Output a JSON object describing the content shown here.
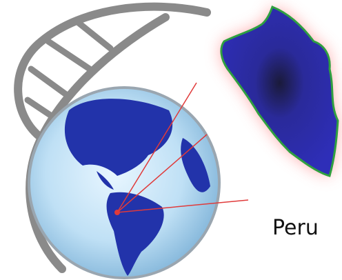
{
  "label": "Peru"
}
